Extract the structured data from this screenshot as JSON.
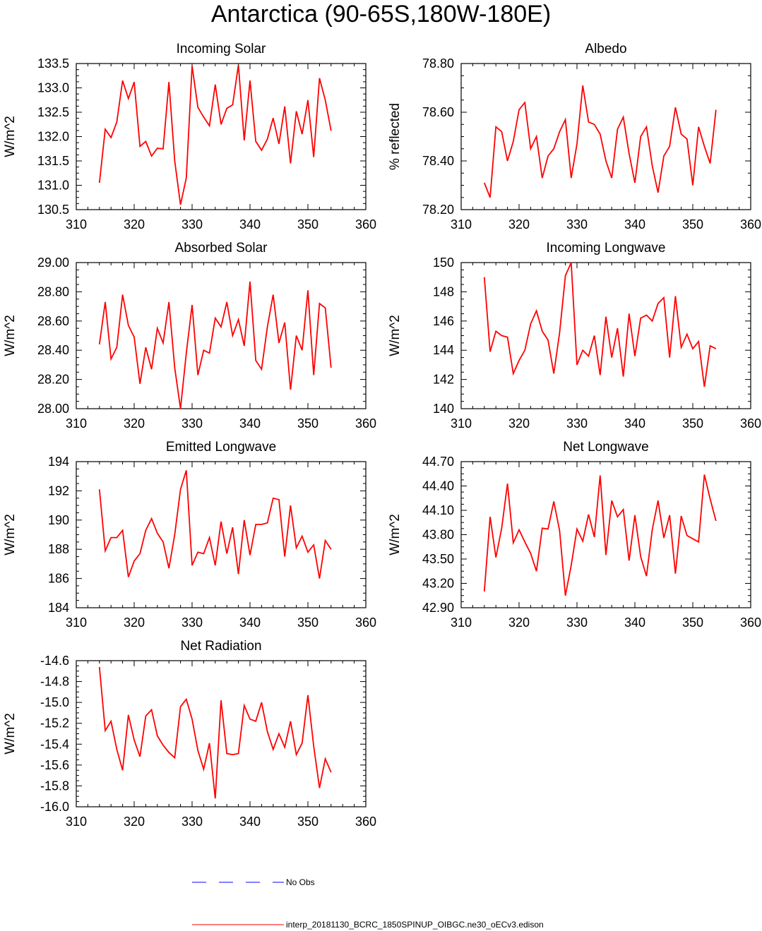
{
  "title": "Antarctica (90-65S,180W-180E)",
  "legend": {
    "obs_label": "No Obs",
    "model_label": "interp_20181130_BCRC_1850SPINUP_OIBGC.ne30_oECv3.edison",
    "obs_color": "#0000ff",
    "model_color": "#ff0000"
  },
  "chart_data": [
    {
      "type": "line",
      "title": "Incoming Solar",
      "ylabel": "W/m^2",
      "xlim": [
        310,
        360
      ],
      "ylim": [
        130.5,
        133.5
      ],
      "xticks": [
        "310",
        "320",
        "330",
        "340",
        "350",
        "360"
      ],
      "yticks": [
        "130.5",
        "131.0",
        "131.5",
        "132.0",
        "132.5",
        "133.0",
        "133.5"
      ],
      "series": [
        {
          "color": "#ff0000",
          "x": [
            314,
            315,
            316,
            317,
            318,
            319,
            320,
            321,
            322,
            323,
            324,
            325,
            326,
            327,
            328,
            329,
            330,
            331,
            332,
            333,
            334,
            335,
            336,
            337,
            338,
            339,
            340,
            341,
            342,
            343,
            344,
            345,
            346,
            347,
            348,
            349,
            350,
            351,
            352,
            353,
            354
          ],
          "values": [
            131.05,
            132.15,
            131.98,
            132.3,
            133.15,
            132.78,
            133.12,
            131.8,
            131.9,
            131.6,
            131.76,
            131.75,
            133.12,
            131.5,
            130.6,
            131.15,
            133.45,
            132.6,
            132.4,
            132.22,
            133.07,
            132.25,
            132.58,
            132.65,
            133.47,
            131.92,
            133.15,
            131.9,
            131.72,
            131.95,
            132.38,
            131.85,
            132.62,
            131.45,
            132.52,
            132.05,
            132.75,
            131.58,
            133.2,
            132.75,
            132.12
          ]
        }
      ]
    },
    {
      "type": "line",
      "title": "Albedo",
      "ylabel": "% reflected",
      "xlim": [
        310,
        360
      ],
      "ylim": [
        78.2,
        78.8
      ],
      "xticks": [
        "310",
        "320",
        "330",
        "340",
        "350",
        "360"
      ],
      "yticks": [
        "78.20",
        "78.40",
        "78.60",
        "78.80"
      ],
      "series": [
        {
          "color": "#ff0000",
          "x": [
            314,
            315,
            316,
            317,
            318,
            319,
            320,
            321,
            322,
            323,
            324,
            325,
            326,
            327,
            328,
            329,
            330,
            331,
            332,
            333,
            334,
            335,
            336,
            337,
            338,
            339,
            340,
            341,
            342,
            343,
            344,
            345,
            346,
            347,
            348,
            349,
            350,
            351,
            352,
            353,
            354
          ],
          "values": [
            78.31,
            78.25,
            78.54,
            78.52,
            78.4,
            78.48,
            78.61,
            78.64,
            78.45,
            78.5,
            78.33,
            78.42,
            78.45,
            78.52,
            78.57,
            78.33,
            78.47,
            78.71,
            78.56,
            78.55,
            78.51,
            78.4,
            78.33,
            78.53,
            78.58,
            78.43,
            78.31,
            78.5,
            78.54,
            78.38,
            78.27,
            78.42,
            78.46,
            78.62,
            78.51,
            78.49,
            78.3,
            78.54,
            78.46,
            78.39,
            78.61
          ]
        }
      ]
    },
    {
      "type": "line",
      "title": "Absorbed Solar",
      "ylabel": "W/m^2",
      "xlim": [
        310,
        360
      ],
      "ylim": [
        28.0,
        29.0
      ],
      "xticks": [
        "310",
        "320",
        "330",
        "340",
        "350",
        "360"
      ],
      "yticks": [
        "28.00",
        "28.20",
        "28.40",
        "28.60",
        "28.80",
        "29.00"
      ],
      "series": [
        {
          "color": "#ff0000",
          "x": [
            314,
            315,
            316,
            317,
            318,
            319,
            320,
            321,
            322,
            323,
            324,
            325,
            326,
            327,
            328,
            329,
            330,
            331,
            332,
            333,
            334,
            335,
            336,
            337,
            338,
            339,
            340,
            341,
            342,
            343,
            344,
            345,
            346,
            347,
            348,
            349,
            350,
            351,
            352,
            353,
            354
          ],
          "values": [
            28.44,
            28.73,
            28.34,
            28.42,
            28.78,
            28.57,
            28.49,
            28.17,
            28.42,
            28.27,
            28.55,
            28.45,
            28.73,
            28.28,
            28.0,
            28.38,
            28.71,
            28.23,
            28.4,
            28.38,
            28.62,
            28.56,
            28.73,
            28.5,
            28.61,
            28.43,
            28.87,
            28.33,
            28.27,
            28.56,
            28.78,
            28.45,
            28.59,
            28.13,
            28.5,
            28.4,
            28.81,
            28.23,
            28.72,
            28.69,
            28.28
          ]
        }
      ]
    },
    {
      "type": "line",
      "title": "Incoming Longwave",
      "ylabel": "W/m^2",
      "xlim": [
        310,
        360
      ],
      "ylim": [
        140,
        150
      ],
      "xticks": [
        "310",
        "320",
        "330",
        "340",
        "350",
        "360"
      ],
      "yticks": [
        "140",
        "142",
        "144",
        "146",
        "148",
        "150"
      ],
      "series": [
        {
          "color": "#ff0000",
          "x": [
            314,
            315,
            316,
            317,
            318,
            319,
            320,
            321,
            322,
            323,
            324,
            325,
            326,
            327,
            328,
            329,
            330,
            331,
            332,
            333,
            334,
            335,
            336,
            337,
            338,
            339,
            340,
            341,
            342,
            343,
            344,
            345,
            346,
            347,
            348,
            349,
            350,
            351,
            352,
            353,
            354
          ],
          "values": [
            149.0,
            143.9,
            145.3,
            145.0,
            144.9,
            142.4,
            143.3,
            144.0,
            145.8,
            146.7,
            145.3,
            144.7,
            142.4,
            145.2,
            149.1,
            150.0,
            143.0,
            144.0,
            143.6,
            145.0,
            142.3,
            146.3,
            143.5,
            145.5,
            142.2,
            146.5,
            143.6,
            146.2,
            146.4,
            146.0,
            147.2,
            147.6,
            143.5,
            147.7,
            144.2,
            145.1,
            144.1,
            144.6,
            141.5,
            144.3,
            144.1
          ]
        }
      ]
    },
    {
      "type": "line",
      "title": "Emitted Longwave",
      "ylabel": "W/m^2",
      "xlim": [
        310,
        360
      ],
      "ylim": [
        184,
        194
      ],
      "xticks": [
        "310",
        "320",
        "330",
        "340",
        "350",
        "360"
      ],
      "yticks": [
        "184",
        "186",
        "188",
        "190",
        "192",
        "194"
      ],
      "series": [
        {
          "color": "#ff0000",
          "x": [
            314,
            315,
            316,
            317,
            318,
            319,
            320,
            321,
            322,
            323,
            324,
            325,
            326,
            327,
            328,
            329,
            330,
            331,
            332,
            333,
            334,
            335,
            336,
            337,
            338,
            339,
            340,
            341,
            342,
            343,
            344,
            345,
            346,
            347,
            348,
            349,
            350,
            351,
            352,
            353,
            354
          ],
          "values": [
            192.1,
            187.9,
            188.8,
            188.8,
            189.3,
            186.1,
            187.2,
            187.7,
            189.3,
            190.1,
            189.1,
            188.5,
            186.7,
            189.0,
            192.1,
            193.4,
            186.9,
            187.8,
            187.7,
            188.8,
            186.9,
            189.9,
            187.7,
            189.5,
            186.3,
            190.0,
            187.6,
            189.7,
            189.7,
            189.8,
            191.5,
            191.4,
            187.5,
            191.0,
            188.1,
            188.9,
            187.8,
            188.3,
            186.0,
            188.6,
            188.0
          ]
        }
      ]
    },
    {
      "type": "line",
      "title": "Net Longwave",
      "ylabel": "W/m^2",
      "xlim": [
        310,
        360
      ],
      "ylim": [
        42.9,
        44.7
      ],
      "xticks": [
        "310",
        "320",
        "330",
        "340",
        "350",
        "360"
      ],
      "yticks": [
        "42.90",
        "43.20",
        "43.50",
        "43.80",
        "44.10",
        "44.40",
        "44.70"
      ],
      "series": [
        {
          "color": "#ff0000",
          "x": [
            314,
            315,
            316,
            317,
            318,
            319,
            320,
            321,
            322,
            323,
            324,
            325,
            326,
            327,
            328,
            329,
            330,
            331,
            332,
            333,
            334,
            335,
            336,
            337,
            338,
            339,
            340,
            341,
            342,
            343,
            344,
            345,
            346,
            347,
            348,
            349,
            350,
            351,
            352,
            353,
            354
          ],
          "values": [
            43.1,
            44.02,
            43.52,
            43.88,
            44.43,
            43.7,
            43.86,
            43.71,
            43.57,
            43.35,
            43.88,
            43.87,
            44.21,
            43.85,
            43.05,
            43.42,
            43.87,
            43.72,
            44.05,
            43.77,
            44.53,
            43.55,
            44.22,
            44.02,
            44.11,
            43.48,
            44.04,
            43.53,
            43.29,
            43.86,
            44.22,
            43.76,
            44.04,
            43.32,
            44.03,
            43.79,
            43.75,
            43.71,
            44.54,
            44.24,
            43.97
          ]
        }
      ]
    },
    {
      "type": "line",
      "title": "Net Radiation",
      "ylabel": "W/m^2",
      "xlim": [
        310,
        360
      ],
      "ylim": [
        -16.0,
        -14.6
      ],
      "xticks": [
        "310",
        "320",
        "330",
        "340",
        "350",
        "360"
      ],
      "yticks": [
        "-16.0",
        "-15.8",
        "-15.6",
        "-15.4",
        "-15.2",
        "-15.0",
        "-14.8",
        "-14.6"
      ],
      "series": [
        {
          "color": "#ff0000",
          "x": [
            314,
            315,
            316,
            317,
            318,
            319,
            320,
            321,
            322,
            323,
            324,
            325,
            326,
            327,
            328,
            329,
            330,
            331,
            332,
            333,
            334,
            335,
            336,
            337,
            338,
            339,
            340,
            341,
            342,
            343,
            344,
            345,
            346,
            347,
            348,
            349,
            350,
            351,
            352,
            353,
            354
          ],
          "values": [
            -14.66,
            -15.27,
            -15.18,
            -15.45,
            -15.65,
            -15.12,
            -15.36,
            -15.52,
            -15.13,
            -15.07,
            -15.32,
            -15.41,
            -15.48,
            -15.53,
            -15.04,
            -14.97,
            -15.16,
            -15.46,
            -15.64,
            -15.39,
            -15.92,
            -14.98,
            -15.49,
            -15.5,
            -15.49,
            -15.03,
            -15.16,
            -15.18,
            -15.0,
            -15.28,
            -15.45,
            -15.3,
            -15.43,
            -15.18,
            -15.5,
            -15.39,
            -14.93,
            -15.42,
            -15.82,
            -15.54,
            -15.67
          ]
        }
      ]
    }
  ]
}
